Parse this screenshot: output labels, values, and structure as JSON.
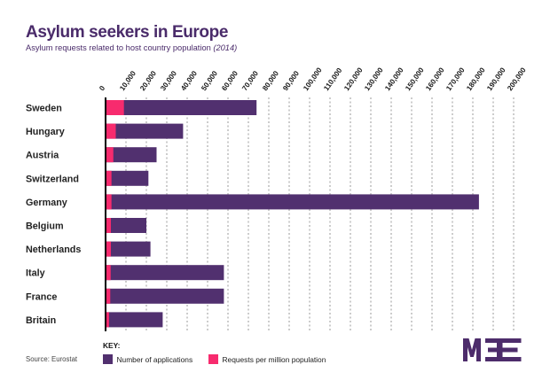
{
  "header": {
    "title": "Asylum seekers in Europe",
    "subtitle": "Asylum requests related to host country population ",
    "subtitle_year": "(2014)"
  },
  "chart_data": {
    "type": "bar",
    "orientation": "horizontal",
    "title": "Asylum seekers in Europe",
    "subtitle": "Asylum requests related to host country population (2014)",
    "xlabel": "",
    "ylabel": "",
    "categories": [
      "Sweden",
      "Hungary",
      "Austria",
      "Switzerland",
      "Germany",
      "Belgium",
      "Netherlands",
      "Italy",
      "France",
      "Britain"
    ],
    "series": [
      {
        "name": "Number of applications",
        "color": "#51306f",
        "values": [
          74000,
          38000,
          25000,
          21000,
          183000,
          20000,
          22000,
          58000,
          58000,
          28000
        ]
      },
      {
        "name": "Requests per million population",
        "color": "#f72b6e",
        "values": [
          9000,
          5000,
          3800,
          2900,
          2900,
          2600,
          2600,
          2500,
          2300,
          1700
        ]
      }
    ],
    "xlim": [
      0,
      200000
    ],
    "xticks": [
      0,
      10000,
      20000,
      30000,
      40000,
      50000,
      60000,
      70000,
      80000,
      90000,
      100000,
      110000,
      120000,
      130000,
      140000,
      150000,
      160000,
      170000,
      180000,
      190000,
      200000
    ],
    "xtick_labels": [
      "0",
      "10,000",
      "20,000",
      "30,000",
      "40,000",
      "50,000",
      "60,000",
      "70,000",
      "80,000",
      "90,000",
      "100,000",
      "110,000",
      "120,000",
      "130,000",
      "140,000",
      "150,000",
      "160,000",
      "170,000",
      "180,000",
      "190,000",
      "200,000"
    ],
    "xtick_position": "top",
    "grid": true,
    "legend_title": "KEY:",
    "legend_position": "bottom-left"
  },
  "footer": {
    "source": "Source: Eurostat",
    "logo": "MEE",
    "logo_color": "#4d2c6b"
  }
}
